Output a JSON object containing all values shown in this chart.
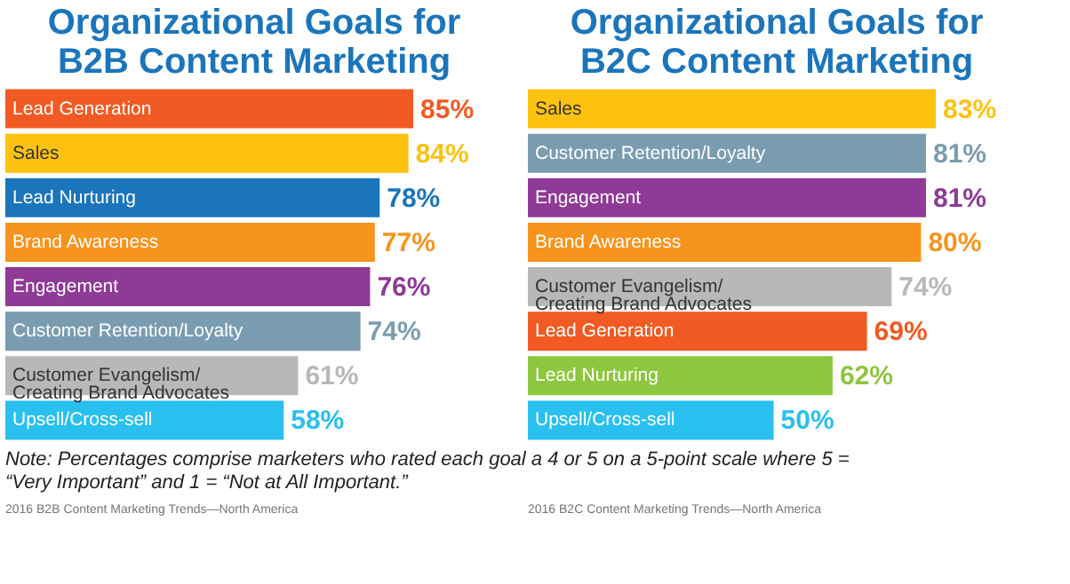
{
  "chart_data": [
    {
      "type": "bar",
      "orientation": "horizontal",
      "title": "Organizational Goals for\nB2B Content Marketing",
      "categories": [
        "Lead Generation",
        "Sales",
        "Lead Nurturing",
        "Brand Awareness",
        "Engagement",
        "Customer Retention/Loyalty",
        "Customer Evangelism/\nCreating Brand Advocates",
        "Upsell/Cross-sell"
      ],
      "values": [
        85,
        84,
        78,
        77,
        76,
        74,
        61,
        58
      ],
      "value_labels": [
        "85%",
        "84%",
        "78%",
        "77%",
        "76%",
        "74%",
        "61%",
        "58%"
      ],
      "colors": [
        "#f15a22",
        "#fdc20f",
        "#1a75bc",
        "#f7941d",
        "#8e3a96",
        "#7a9cb0",
        "#b8b8b8",
        "#29c0ef"
      ],
      "annotations": [
        "Note: Percentages comprise marketers who rated each goal a 4 or 5 on a 5-point scale where 5 = “Very Important” and 1 = “Not at All Important.”",
        "2016 B2B Content Marketing Trends—North America"
      ]
    },
    {
      "type": "bar",
      "orientation": "horizontal",
      "title": "Organizational Goals for\nB2C Content Marketing",
      "categories": [
        "Sales",
        "Customer Retention/Loyalty",
        "Engagement",
        "Brand Awareness",
        "Customer Evangelism/\nCreating Brand Advocates",
        "Lead Generation",
        "Lead Nurturing",
        "Upsell/Cross-sell"
      ],
      "values": [
        83,
        81,
        81,
        80,
        74,
        69,
        62,
        50
      ],
      "value_labels": [
        "83%",
        "81%",
        "81%",
        "80%",
        "74%",
        "69%",
        "62%",
        "50%"
      ],
      "colors": [
        "#fdc20f",
        "#7a9cb0",
        "#8e3a96",
        "#f7941d",
        "#b8b8b8",
        "#f15a22",
        "#8dc63f",
        "#29c0ef"
      ],
      "annotations": [
        "2016 B2C Content Marketing Trends—North America"
      ]
    }
  ]
}
